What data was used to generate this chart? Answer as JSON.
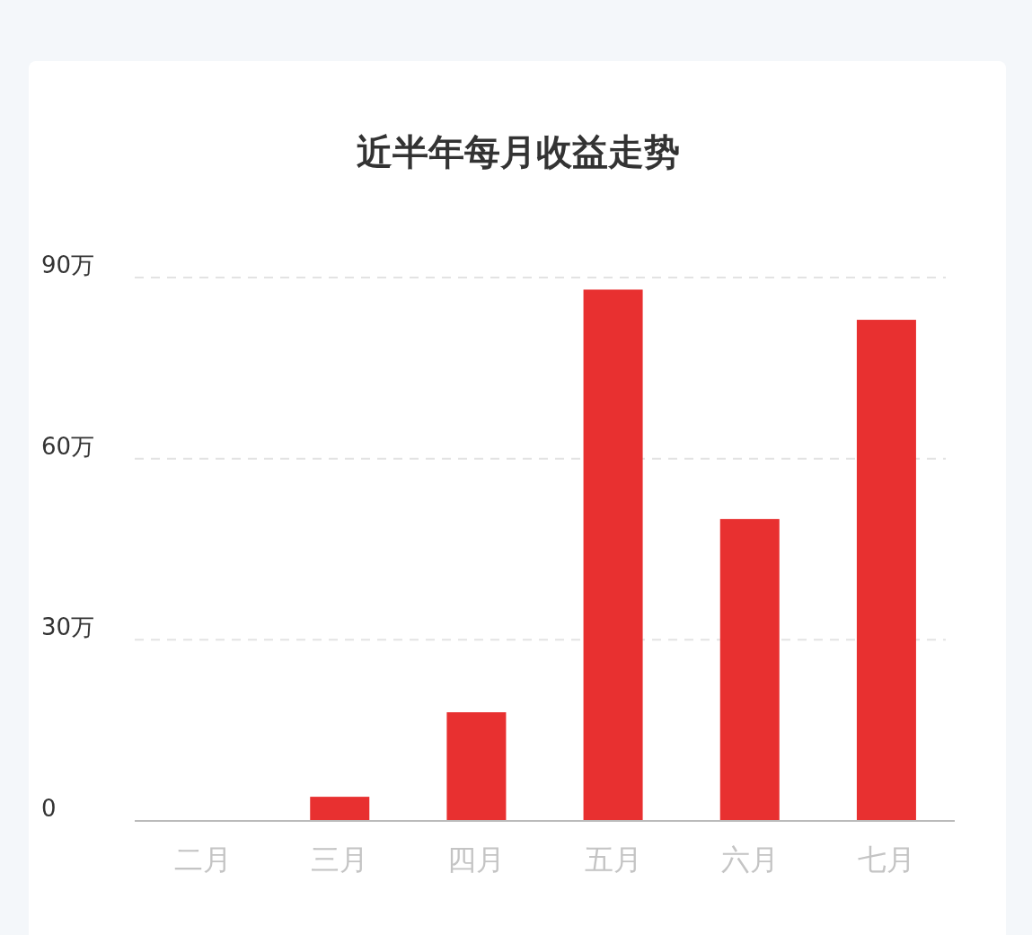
{
  "chart_data": {
    "type": "bar",
    "title": "近半年每月收益走势",
    "categories": [
      "二月",
      "三月",
      "四月",
      "五月",
      "六月",
      "七月"
    ],
    "values": [
      0,
      4,
      18,
      88,
      50,
      83
    ],
    "color": "#e83030",
    "ylim": [
      0,
      90
    ],
    "yticks": [
      0,
      {
        "value": 30,
        "label": "30万"
      },
      {
        "value": 60,
        "label": "60万"
      },
      {
        "value": 90,
        "label": "90万"
      }
    ],
    "grid": "y"
  }
}
